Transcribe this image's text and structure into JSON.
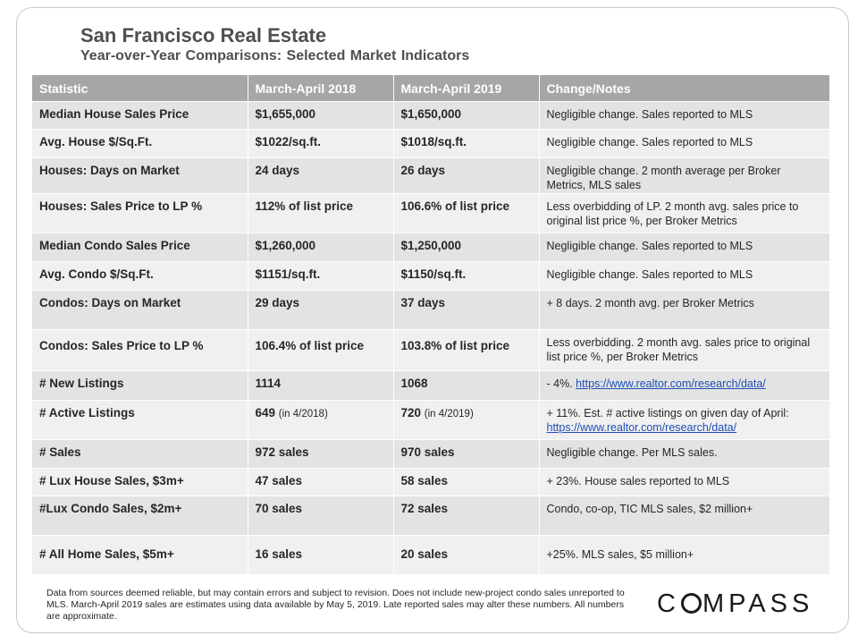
{
  "header": {
    "title": "San Francisco Real Estate",
    "subtitle": "Year-over-Year  Comparisons:  Selected Market Indicators"
  },
  "table": {
    "columns": [
      "Statistic",
      "March-April  2018",
      "March-April  2019",
      "Change/Notes"
    ],
    "rows": [
      {
        "stat": "Median House Sales Price",
        "y2018": "$1,655,000",
        "y2019": "$1,650,000",
        "note": "Negligible change. Sales reported to MLS"
      },
      {
        "stat": "Avg. House $/Sq.Ft.",
        "y2018": "$1022/sq.ft.",
        "y2019": "$1018/sq.ft.",
        "note": "Negligible change. Sales reported to MLS"
      },
      {
        "stat": "Houses: Days on Market",
        "y2018": "24 days",
        "y2019": "26 days",
        "note": "Negligible change. 2 month average per Broker Metrics, MLS sales"
      },
      {
        "stat": "Houses: Sales Price to LP %",
        "y2018": "112% of list price",
        "y2019": "106.6% of list price",
        "note": "Less overbidding of LP. 2 month avg. sales price to original list price %, per Broker Metrics"
      },
      {
        "stat": "Median Condo Sales Price",
        "y2018": "$1,260,000",
        "y2019": "$1,250,000",
        "note": "Negligible change. Sales reported to MLS"
      },
      {
        "stat": "Avg. Condo $/Sq.Ft.",
        "y2018": "$1151/sq.ft.",
        "y2019": "$1150/sq.ft.",
        "note": "Negligible change. Sales reported to MLS"
      },
      {
        "stat": "Condos: Days on Market",
        "y2018": "29 days",
        "y2019": "37 days",
        "note": "+ 8 days. 2 month avg. per Broker Metrics"
      },
      {
        "stat": "Condos: Sales Price to LP %",
        "y2018": "106.4% of list price",
        "y2019": "103.8% of list price",
        "note": "Less overbidding. 2 month avg. sales price to original list price %, per Broker Metrics"
      },
      {
        "stat": "# New Listings",
        "y2018": "1114",
        "y2019": "1068",
        "note": "- 4%.",
        "link": "https://www.realtor.com/research/data/"
      },
      {
        "stat": "# Active Listings",
        "y2018": "649",
        "y2018_sub": "(in 4/2018)",
        "y2019": "720",
        "y2019_sub": "(in 4/2019)",
        "note": "+ 11%. Est. # active listings on given day of April:",
        "link": "https://www.realtor.com/research/data/"
      },
      {
        "stat": "# Sales",
        "y2018": "972 sales",
        "y2019": "970 sales",
        "note": "Negligible change. Per MLS sales."
      },
      {
        "stat": "# Lux House Sales, $3m+",
        "y2018": "47 sales",
        "y2019": "58 sales",
        "note": "+ 23%. House sales reported to MLS"
      },
      {
        "stat": "#Lux Condo Sales, $2m+",
        "y2018": "70 sales",
        "y2019": "72 sales",
        "note": "Condo, co-op, TIC MLS sales, $2 million+"
      },
      {
        "stat": "# All Home Sales, $5m+",
        "y2018": "16 sales",
        "y2019": "20 sales",
        "note": "+25%. MLS sales, $5 million+"
      }
    ]
  },
  "footer": {
    "disclaimer": "Data from sources deemed reliable, but may contain errors and subject to revision. Does not include new-project condo sales unreported to MLS. March-April 2019 sales are estimates using data available by May 5, 2019. Late reported sales may alter these numbers. All numbers are approximate."
  },
  "logo": {
    "text": "COMPASS",
    "prefix": "C",
    "suffix": "MPASS"
  }
}
